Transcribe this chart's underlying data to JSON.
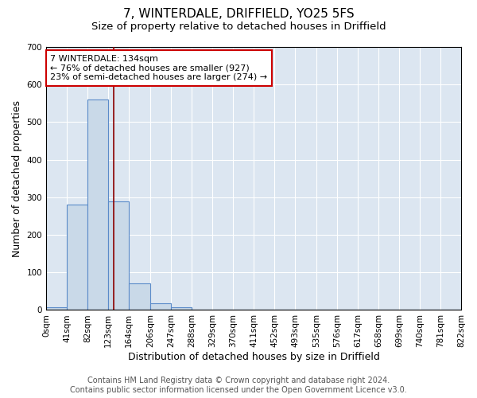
{
  "title": "7, WINTERDALE, DRIFFIELD, YO25 5FS",
  "subtitle": "Size of property relative to detached houses in Driffield",
  "xlabel": "Distribution of detached houses by size in Driffield",
  "ylabel": "Number of detached properties",
  "bin_edges": [
    0,
    41,
    82,
    123,
    164,
    206,
    247,
    288,
    329,
    370,
    411,
    452,
    493,
    535,
    576,
    617,
    658,
    699,
    740,
    781,
    822
  ],
  "bin_counts": [
    8,
    280,
    560,
    290,
    70,
    18,
    8,
    0,
    0,
    0,
    0,
    0,
    0,
    0,
    0,
    0,
    0,
    0,
    0,
    0
  ],
  "bar_color": "#c9d9e8",
  "bar_edge_color": "#5b8bc9",
  "property_size": 134,
  "vline_color": "#8b0000",
  "annotation_line1": "7 WINTERDALE: 134sqm",
  "annotation_line2": "← 76% of detached houses are smaller (927)",
  "annotation_line3": "23% of semi-detached houses are larger (274) →",
  "annotation_box_color": "#ffffff",
  "annotation_box_edge_color": "#cc0000",
  "ylim": [
    0,
    700
  ],
  "yticks": [
    0,
    100,
    200,
    300,
    400,
    500,
    600,
    700
  ],
  "background_color": "#dce6f1",
  "grid_color": "#ffffff",
  "footer_line1": "Contains HM Land Registry data © Crown copyright and database right 2024.",
  "footer_line2": "Contains public sector information licensed under the Open Government Licence v3.0.",
  "title_fontsize": 11,
  "subtitle_fontsize": 9.5,
  "xlabel_fontsize": 9,
  "ylabel_fontsize": 9,
  "tick_fontsize": 7.5,
  "annotation_fontsize": 8,
  "footer_fontsize": 7
}
